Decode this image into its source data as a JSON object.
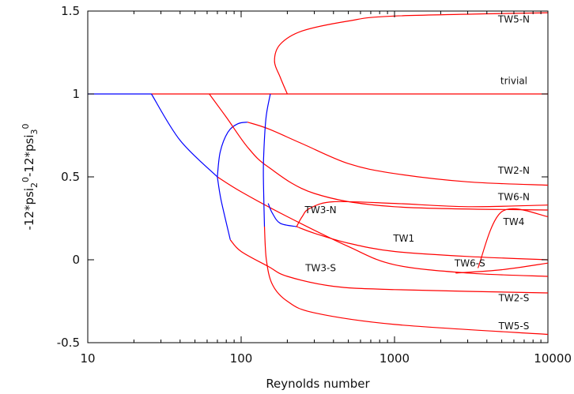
{
  "chart_data": {
    "type": "line",
    "xlabel": "Reynolds number",
    "ylabel": "-12*psi20-12*psi30",
    "ylabel_parts": {
      "a": "-12*psi",
      "a_sub": "2",
      "a_sup": "0",
      "b": "-12*psi",
      "b_sub": "3",
      "b_sup": "0"
    },
    "xscale": "log",
    "xlim": [
      10,
      10000
    ],
    "ylim": [
      -0.5,
      1.5
    ],
    "xticks": [
      10,
      100,
      1000,
      10000
    ],
    "xtick_labels": [
      "10",
      "100",
      "1000",
      "10000"
    ],
    "yticks": [
      -0.5,
      0,
      0.5,
      1,
      1.5
    ],
    "ytick_labels": [
      "-0.5",
      "0",
      "0.5",
      "1",
      "1.5"
    ],
    "grid": false,
    "legend": "none",
    "colors": {
      "unstable": "#0000ff",
      "stable": "#ff0000"
    },
    "series": [
      {
        "points": [
          [
            10,
            1
          ],
          [
            26,
            1
          ]
        ],
        "color": "blue"
      },
      {
        "points": [
          [
            26,
            1
          ],
          [
            10000,
            1
          ]
        ],
        "color": "red"
      },
      {
        "points": [
          [
            26,
            1
          ],
          [
            40,
            0.72
          ],
          [
            70,
            0.5
          ]
        ],
        "color": "blue"
      },
      {
        "points": [
          [
            70,
            0.5
          ],
          [
            100,
            0.41
          ],
          [
            200,
            0.26
          ],
          [
            500,
            0.08
          ],
          [
            1000,
            -0.03
          ],
          [
            3000,
            -0.08
          ],
          [
            10000,
            -0.1
          ]
        ],
        "color": "red"
      },
      {
        "points": [
          [
            70,
            0.5
          ],
          [
            73,
            0.65
          ],
          [
            82,
            0.77
          ],
          [
            95,
            0.82
          ],
          [
            110,
            0.83
          ]
        ],
        "color": "blue"
      },
      {
        "points": [
          [
            70,
            0.5
          ],
          [
            74,
            0.36
          ],
          [
            85,
            0.12
          ]
        ],
        "color": "blue"
      },
      {
        "points": [
          [
            110,
            0.83
          ],
          [
            150,
            0.79
          ],
          [
            250,
            0.7
          ],
          [
            500,
            0.58
          ],
          [
            1000,
            0.52
          ],
          [
            3000,
            0.47
          ],
          [
            10000,
            0.45
          ]
        ],
        "color": "red"
      },
      {
        "points": [
          [
            85,
            0.12
          ],
          [
            100,
            0.05
          ],
          [
            150,
            -0.04
          ],
          [
            200,
            -0.1
          ],
          [
            400,
            -0.16
          ],
          [
            1000,
            -0.18
          ],
          [
            10000,
            -0.2
          ]
        ],
        "color": "red"
      },
      {
        "points": [
          [
            62,
            1
          ],
          [
            80,
            0.86
          ],
          [
            110,
            0.68
          ],
          [
            150,
            0.56
          ],
          [
            300,
            0.4
          ],
          [
            1000,
            0.32
          ],
          [
            10000,
            0.3
          ]
        ],
        "color": "red"
      },
      {
        "points": [
          [
            150,
            0.34
          ],
          [
            160,
            0.28
          ],
          [
            180,
            0.22
          ],
          [
            230,
            0.2
          ]
        ],
        "color": "blue"
      },
      {
        "points": [
          [
            230,
            0.2
          ],
          [
            250,
            0.26
          ],
          [
            280,
            0.31
          ],
          [
            400,
            0.35
          ],
          [
            1000,
            0.34
          ],
          [
            3000,
            0.32
          ],
          [
            10000,
            0.33
          ]
        ],
        "color": "red"
      },
      {
        "points": [
          [
            230,
            0.2
          ],
          [
            300,
            0.16
          ],
          [
            500,
            0.1
          ],
          [
            1000,
            0.05
          ],
          [
            3000,
            0.02
          ],
          [
            10000,
            0.0
          ]
        ],
        "color": "red"
      },
      {
        "points": [
          [
            3500,
            -0.05
          ],
          [
            5000,
            0.29
          ],
          [
            10000,
            0.26
          ]
        ],
        "color": "red"
      },
      {
        "points": [
          [
            2500,
            -0.08
          ],
          [
            5000,
            -0.06
          ],
          [
            10000,
            -0.02
          ]
        ],
        "color": "red"
      },
      {
        "points": [
          [
            200,
            1
          ],
          [
            180,
            1.1
          ],
          [
            165,
            1.2
          ],
          [
            180,
            1.3
          ],
          [
            250,
            1.38
          ],
          [
            500,
            1.44
          ],
          [
            1000,
            1.47
          ],
          [
            10000,
            1.49
          ]
        ],
        "color": "red"
      },
      {
        "points": [
          [
            155,
            1.0
          ],
          [
            145,
            0.85
          ],
          [
            140,
            0.6
          ],
          [
            140,
            0.45
          ],
          [
            142,
            0.2
          ]
        ],
        "color": "blue"
      },
      {
        "points": [
          [
            142,
            0.2
          ],
          [
            146,
            0.0
          ],
          [
            160,
            -0.15
          ],
          [
            200,
            -0.25
          ],
          [
            300,
            -0.32
          ],
          [
            1000,
            -0.39
          ],
          [
            10000,
            -0.45
          ]
        ],
        "color": "red"
      }
    ],
    "annotations": [
      {
        "text": "TW5-N",
        "x": 6000,
        "y": 1.43
      },
      {
        "text": "trivial",
        "x": 6000,
        "y": 1.06
      },
      {
        "text": "TW2-N",
        "x": 6000,
        "y": 0.52
      },
      {
        "text": "TW6-N",
        "x": 6000,
        "y": 0.36
      },
      {
        "text": "TW4",
        "x": 6000,
        "y": 0.21
      },
      {
        "text": "TW3-N",
        "x": 330,
        "y": 0.28
      },
      {
        "text": "TW1",
        "x": 1150,
        "y": 0.11
      },
      {
        "text": "TW6-S",
        "x": 3100,
        "y": -0.04
      },
      {
        "text": "TW3-S",
        "x": 330,
        "y": -0.07
      },
      {
        "text": "TW2-S",
        "x": 6000,
        "y": -0.25
      },
      {
        "text": "TW5-S",
        "x": 6000,
        "y": -0.42
      }
    ]
  }
}
